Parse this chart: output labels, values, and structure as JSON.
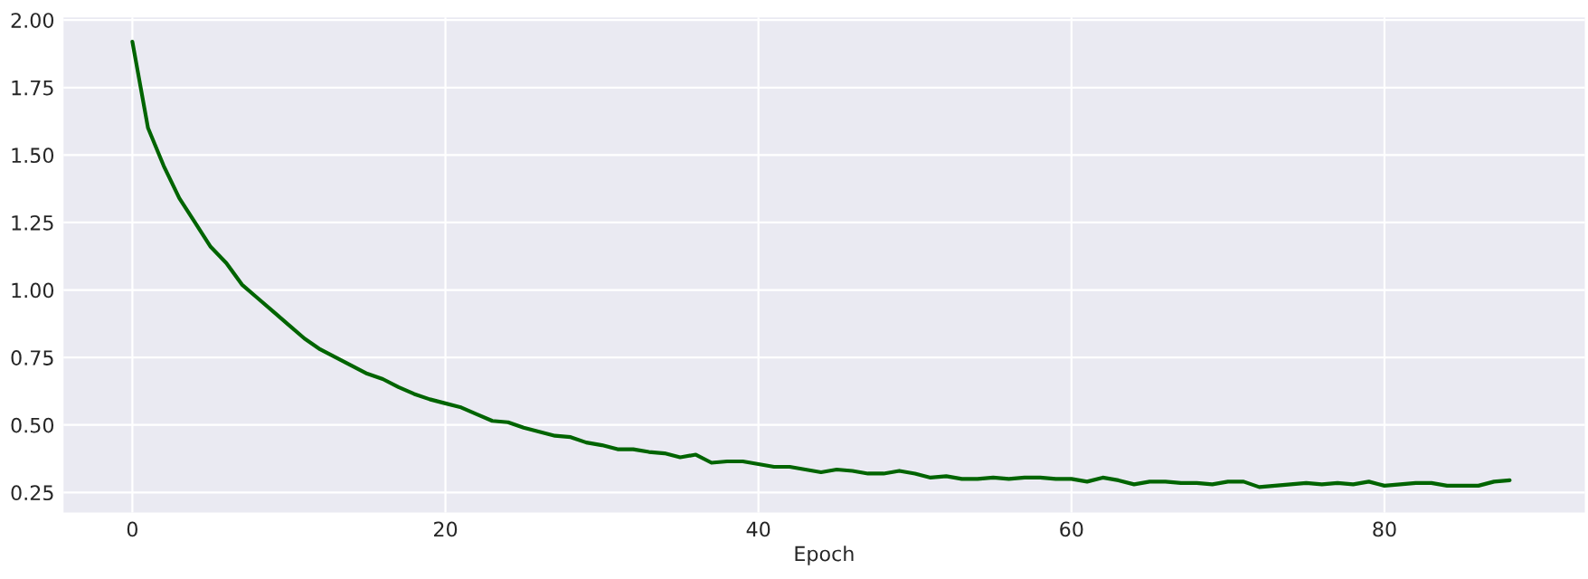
{
  "chart_data": {
    "type": "line",
    "xlabel": "Epoch",
    "xlim": [
      -4.4,
      92.8
    ],
    "ylim": [
      0.176,
      2.01
    ],
    "xticks": [
      0,
      20,
      40,
      60,
      80
    ],
    "yticks": [
      {
        "value": 0.25,
        "label": "0.25"
      },
      {
        "value": 0.5,
        "label": "0.50"
      },
      {
        "value": 0.75,
        "label": "0.75"
      },
      {
        "value": 1.0,
        "label": "1.00"
      },
      {
        "value": 1.25,
        "label": "1.25"
      },
      {
        "value": 1.5,
        "label": "1.50"
      },
      {
        "value": 1.75,
        "label": "1.75"
      },
      {
        "value": 2.0,
        "label": "2.00"
      }
    ],
    "grid": true,
    "marker": "none",
    "line_style": "solid",
    "series": [
      {
        "color": "#006400",
        "x": [
          0,
          1,
          2,
          3,
          4,
          5,
          6,
          7,
          8,
          9,
          10,
          11,
          12,
          13,
          14,
          15,
          16,
          17,
          18,
          19,
          20,
          21,
          22,
          23,
          24,
          25,
          26,
          27,
          28,
          29,
          30,
          31,
          32,
          33,
          34,
          35,
          36,
          37,
          38,
          39,
          40,
          41,
          42,
          43,
          44,
          45,
          46,
          47,
          48,
          49,
          50,
          51,
          52,
          53,
          54,
          55,
          56,
          57,
          58,
          59,
          60,
          61,
          62,
          63,
          64,
          65,
          66,
          67,
          68,
          69,
          70,
          71,
          72,
          73,
          74,
          75,
          76,
          77,
          78,
          79,
          80,
          81,
          82,
          83,
          84,
          85,
          86,
          87,
          88
        ],
        "values": [
          1.92,
          1.6,
          1.46,
          1.34,
          1.25,
          1.16,
          1.1,
          1.02,
          0.97,
          0.92,
          0.87,
          0.82,
          0.78,
          0.75,
          0.72,
          0.69,
          0.67,
          0.64,
          0.615,
          0.595,
          0.58,
          0.565,
          0.54,
          0.515,
          0.51,
          0.49,
          0.475,
          0.46,
          0.455,
          0.435,
          0.425,
          0.41,
          0.41,
          0.4,
          0.395,
          0.38,
          0.39,
          0.36,
          0.365,
          0.365,
          0.355,
          0.345,
          0.345,
          0.335,
          0.325,
          0.335,
          0.33,
          0.32,
          0.32,
          0.33,
          0.32,
          0.305,
          0.31,
          0.3,
          0.3,
          0.305,
          0.3,
          0.305,
          0.305,
          0.3,
          0.3,
          0.29,
          0.305,
          0.295,
          0.28,
          0.29,
          0.29,
          0.285,
          0.285,
          0.28,
          0.29,
          0.29,
          0.27,
          0.275,
          0.28,
          0.285,
          0.28,
          0.285,
          0.28,
          0.29,
          0.275,
          0.28,
          0.285,
          0.285,
          0.275,
          0.275,
          0.275,
          0.29,
          0.295
        ]
      }
    ]
  }
}
